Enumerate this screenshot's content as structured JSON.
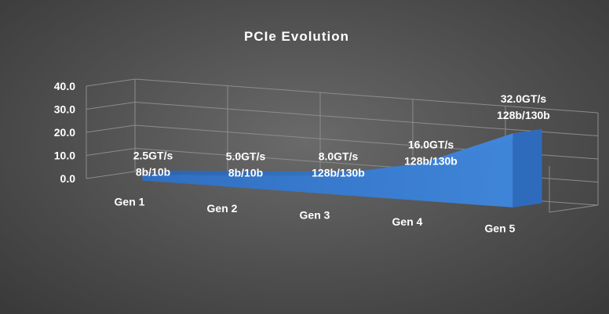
{
  "chart_data": {
    "type": "area",
    "title": "PCIe Evolution",
    "categories": [
      "Gen 1",
      "Gen 2",
      "Gen 3",
      "Gen 4",
      "Gen 5"
    ],
    "series": [
      {
        "values": [
          2.5,
          5.0,
          8.0,
          16.0,
          32.0
        ],
        "data_labels": [
          [
            "2.5GT/s",
            "8b/10b"
          ],
          [
            "5.0GT/s",
            "8b/10b"
          ],
          [
            "8.0GT/s",
            "128b/130b"
          ],
          [
            "16.0GT/s",
            "128b/130b"
          ],
          [
            "32.0GT/s",
            "128b/130b"
          ]
        ]
      }
    ],
    "yticks": [
      "0.0",
      "10.0",
      "20.0",
      "30.0",
      "40.0"
    ],
    "ylim": [
      0,
      40
    ],
    "projection": "3d",
    "grid": true,
    "colors": {
      "series": "#3f82d6",
      "grid": "#8c8c8c",
      "text": "#ffffff"
    }
  }
}
